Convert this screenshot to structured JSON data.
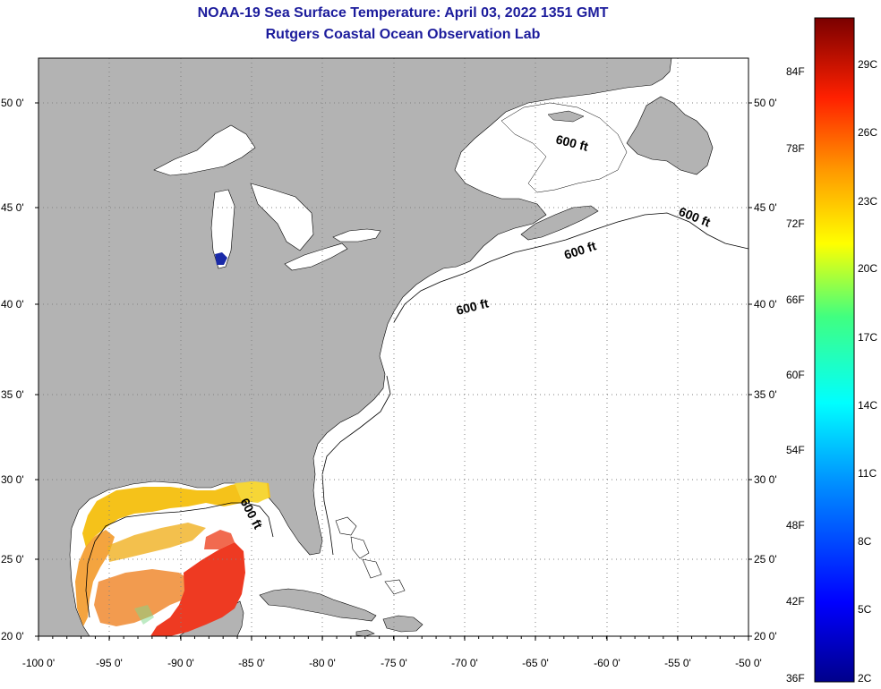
{
  "title": {
    "line1": "NOAA-19 Sea Surface Temperature:  April 03, 2022 1351 GMT",
    "line2": "Rutgers Coastal Ocean Observation Lab"
  },
  "map": {
    "lat_labels": [
      "50 0'",
      "45 0'",
      "40 0'",
      "35 0'",
      "30 0'",
      "25 0'",
      "20 0'"
    ],
    "lon_labels": [
      "-100 0'",
      "-95 0'",
      "-90 0'",
      "-85 0'",
      "-80 0'",
      "-75 0'",
      "-70 0'",
      "-65 0'",
      "-60 0'",
      "-55 0'",
      "-50 0'"
    ],
    "contour_label": "600 ft",
    "colors": {
      "land": "#b3b3b3",
      "water": "#ffffff",
      "grid": "#808080"
    }
  },
  "colorbar": {
    "f_labels": [
      "84F",
      "78F",
      "72F",
      "66F",
      "60F",
      "54F",
      "48F",
      "42F",
      "36F"
    ],
    "c_labels": [
      "29C",
      "26C",
      "23C",
      "20C",
      "17C",
      "14C",
      "11C",
      "8C",
      "5C",
      "2C"
    ]
  }
}
